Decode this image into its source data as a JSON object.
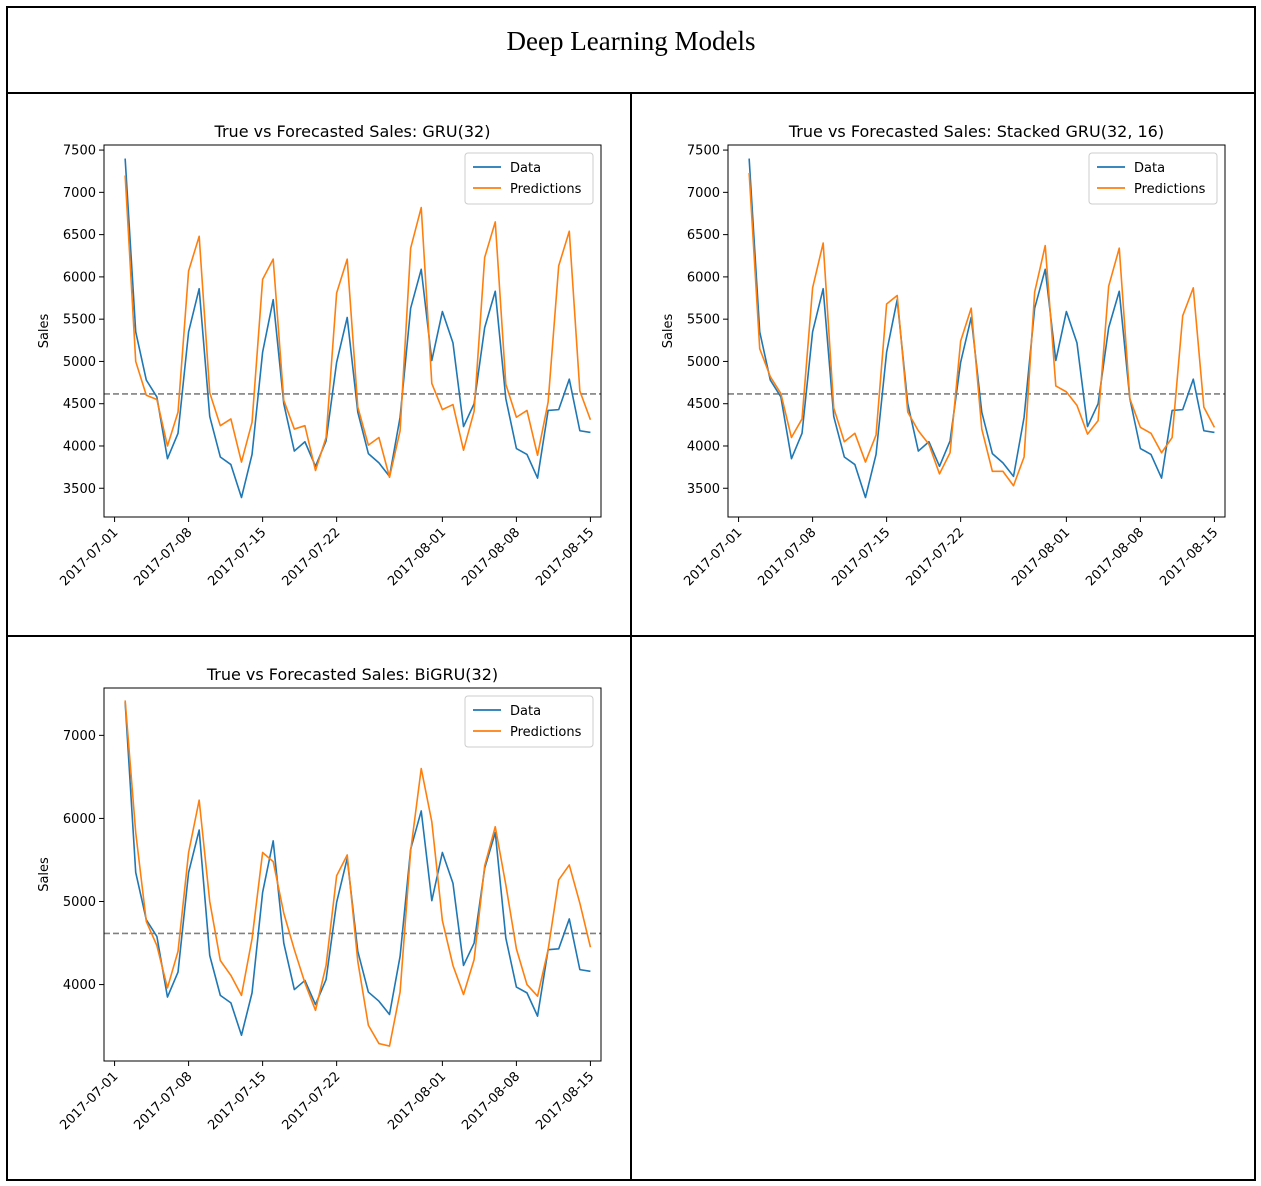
{
  "page_title": "Deep Learning Models",
  "colors": {
    "data": "#1f77b4",
    "predictions": "#ff7f0e",
    "reference_line": "#808080"
  },
  "chart_data": [
    {
      "type": "line",
      "title": "True vs Forecasted Sales: GRU(32)",
      "xlabel": "",
      "ylabel": "Sales",
      "x_start": "2017-07-02",
      "x_end": "2017-08-15",
      "x_ticks": [
        "2017-07-01",
        "2017-07-08",
        "2017-07-15",
        "2017-07-22",
        "2017-08-01",
        "2017-08-08",
        "2017-08-15"
      ],
      "xlim": [
        "2017-06-30",
        "2017-08-16"
      ],
      "y_ticks": [
        3500,
        4000,
        4500,
        5000,
        5500,
        6000,
        6500,
        7000,
        7500
      ],
      "ylim": [
        3160,
        7560
      ],
      "reference_line": 4615,
      "legend": [
        "Data",
        "Predictions"
      ],
      "legend_position": "upper right",
      "grid": false,
      "series": [
        {
          "name": "Data",
          "color": "#1f77b4",
          "values": [
            7400,
            5350,
            4780,
            4580,
            3850,
            4150,
            5350,
            5860,
            4350,
            3870,
            3780,
            3390,
            3900,
            5110,
            5730,
            4500,
            3940,
            4050,
            3760,
            4060,
            4990,
            5520,
            4400,
            3910,
            3800,
            3640,
            4340,
            5630,
            6090,
            5010,
            5590,
            5220,
            4230,
            4500,
            5400,
            5830,
            4560,
            3970,
            3900,
            3620,
            4420,
            4430,
            4790,
            4180,
            4160
          ]
        },
        {
          "name": "Predictions",
          "color": "#ff7f0e",
          "values": [
            7200,
            5000,
            4600,
            4550,
            4000,
            4400,
            6070,
            6480,
            4630,
            4240,
            4320,
            3810,
            4280,
            5970,
            6210,
            4540,
            4200,
            4240,
            3710,
            4100,
            5810,
            6210,
            4460,
            4010,
            4100,
            3630,
            4180,
            6340,
            6820,
            4740,
            4430,
            4490,
            3950,
            4410,
            6230,
            6650,
            4730,
            4340,
            4420,
            3890,
            4520,
            6130,
            6540,
            4650,
            4310
          ]
        }
      ]
    },
    {
      "type": "line",
      "title": "True vs Forecasted Sales: Stacked GRU(32, 16)",
      "xlabel": "",
      "ylabel": "Sales",
      "x_start": "2017-07-02",
      "x_end": "2017-08-15",
      "x_ticks": [
        "2017-07-01",
        "2017-07-08",
        "2017-07-15",
        "2017-07-22",
        "2017-08-01",
        "2017-08-08",
        "2017-08-15"
      ],
      "xlim": [
        "2017-06-30",
        "2017-08-16"
      ],
      "y_ticks": [
        3500,
        4000,
        4500,
        5000,
        5500,
        6000,
        6500,
        7000,
        7500
      ],
      "ylim": [
        3160,
        7560
      ],
      "reference_line": 4615,
      "legend": [
        "Data",
        "Predictions"
      ],
      "legend_position": "upper right",
      "grid": false,
      "series": [
        {
          "name": "Data",
          "color": "#1f77b4",
          "values": [
            7400,
            5350,
            4780,
            4580,
            3850,
            4150,
            5350,
            5860,
            4350,
            3870,
            3780,
            3390,
            3900,
            5110,
            5730,
            4500,
            3940,
            4050,
            3760,
            4060,
            4990,
            5520,
            4400,
            3910,
            3800,
            3640,
            4340,
            5630,
            6090,
            5010,
            5590,
            5220,
            4230,
            4500,
            5400,
            5830,
            4560,
            3970,
            3900,
            3620,
            4420,
            4430,
            4790,
            4180,
            4160
          ]
        },
        {
          "name": "Predictions",
          "color": "#ff7f0e",
          "values": [
            7230,
            5150,
            4820,
            4620,
            4100,
            4320,
            5870,
            6400,
            4450,
            4050,
            4150,
            3810,
            4130,
            5680,
            5780,
            4400,
            4180,
            4020,
            3670,
            3920,
            5240,
            5630,
            4200,
            3700,
            3700,
            3530,
            3870,
            5820,
            6370,
            4710,
            4640,
            4480,
            4140,
            4300,
            5890,
            6340,
            4560,
            4220,
            4150,
            3920,
            4100,
            5540,
            5870,
            4460,
            4220
          ]
        }
      ]
    },
    {
      "type": "line",
      "title": "True vs Forecasted Sales: BiGRU(32)",
      "xlabel": "",
      "ylabel": "Sales",
      "x_start": "2017-07-02",
      "x_end": "2017-08-15",
      "x_ticks": [
        "2017-07-01",
        "2017-07-08",
        "2017-07-15",
        "2017-07-22",
        "2017-08-01",
        "2017-08-08",
        "2017-08-15"
      ],
      "xlim": [
        "2017-06-30",
        "2017-08-16"
      ],
      "y_ticks": [
        4000,
        5000,
        6000,
        7000
      ],
      "ylim": [
        3080,
        7570
      ],
      "reference_line": 4615,
      "legend": [
        "Data",
        "Predictions"
      ],
      "legend_position": "upper right",
      "grid": false,
      "series": [
        {
          "name": "Data",
          "color": "#1f77b4",
          "values": [
            7400,
            5350,
            4780,
            4580,
            3850,
            4150,
            5350,
            5860,
            4350,
            3870,
            3780,
            3390,
            3900,
            5110,
            5730,
            4500,
            3940,
            4050,
            3760,
            4060,
            4990,
            5520,
            4400,
            3910,
            3800,
            3640,
            4340,
            5630,
            6090,
            5010,
            5590,
            5220,
            4230,
            4500,
            5400,
            5830,
            4560,
            3970,
            3900,
            3620,
            4420,
            4430,
            4790,
            4180,
            4160
          ]
        },
        {
          "name": "Predictions",
          "color": "#ff7f0e",
          "values": [
            7420,
            5830,
            4760,
            4470,
            3960,
            4400,
            5590,
            6220,
            5000,
            4290,
            4110,
            3870,
            4550,
            5590,
            5480,
            4860,
            4420,
            4020,
            3690,
            4230,
            5310,
            5560,
            4280,
            3510,
            3290,
            3260,
            3910,
            5610,
            6600,
            5960,
            4770,
            4230,
            3880,
            4300,
            5430,
            5900,
            5200,
            4430,
            4000,
            3860,
            4420,
            5260,
            5440,
            4980,
            4450
          ]
        }
      ]
    }
  ]
}
